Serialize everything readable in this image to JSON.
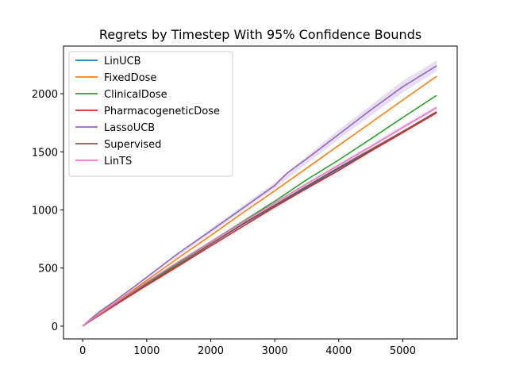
{
  "chart_data": {
    "type": "line",
    "title": "Regrets by Timestep With 95% Confidence Bounds",
    "xlabel": "",
    "ylabel": "",
    "xlim": [
      -300,
      5850
    ],
    "ylim": [
      -110,
      2410
    ],
    "x_ticks": [
      0,
      1000,
      2000,
      3000,
      4000,
      5000
    ],
    "y_ticks": [
      0,
      500,
      1000,
      1500,
      2000
    ],
    "grid": false,
    "legend": "top-left",
    "series": [
      {
        "name": "LinUCB",
        "color": "#1f77b4",
        "x": [
          0,
          100,
          250,
          500,
          1000,
          1500,
          2000,
          2500,
          3000,
          3500,
          4000,
          4500,
          5000,
          5528
        ],
        "y": [
          0,
          42,
          95,
          185,
          360,
          530,
          705,
          875,
          1035,
          1195,
          1355,
          1510,
          1665,
          1840
        ]
      },
      {
        "name": "FixedDose",
        "color": "#ff7f0e",
        "x": [
          0,
          100,
          250,
          500,
          1000,
          1500,
          2000,
          2500,
          3000,
          3500,
          4000,
          4500,
          5000,
          5528
        ],
        "y": [
          0,
          45,
          105,
          200,
          395,
          590,
          780,
          975,
          1165,
          1360,
          1555,
          1750,
          1945,
          2150
        ]
      },
      {
        "name": "ClinicalDose",
        "color": "#2ca02c",
        "x": [
          0,
          100,
          250,
          500,
          1000,
          1500,
          2000,
          2500,
          3000,
          3500,
          4000,
          4500,
          5000,
          5528
        ],
        "y": [
          0,
          42,
          98,
          188,
          368,
          545,
          725,
          900,
          1075,
          1260,
          1430,
          1610,
          1795,
          1985
        ]
      },
      {
        "name": "PharmacogeneticDose",
        "color": "#d62728",
        "x": [
          0,
          100,
          250,
          500,
          1000,
          1500,
          2000,
          2500,
          3000,
          3500,
          4000,
          4500,
          5000,
          5528
        ],
        "y": [
          0,
          38,
          90,
          178,
          350,
          518,
          690,
          858,
          1025,
          1185,
          1340,
          1505,
          1665,
          1835
        ]
      },
      {
        "name": "LassoUCB",
        "color": "#9467bd",
        "x": [
          0,
          100,
          250,
          500,
          1000,
          1500,
          2000,
          2500,
          3000,
          3200,
          3500,
          4000,
          4500,
          5000,
          5528
        ],
        "y": [
          0,
          50,
          120,
          215,
          420,
          630,
          820,
          1015,
          1210,
          1320,
          1440,
          1650,
          1860,
          2060,
          2240
        ]
      },
      {
        "name": "Supervised",
        "color": "#8c564b",
        "x": [
          0,
          100,
          250,
          500,
          1000,
          1500,
          2000,
          2500,
          3000,
          3500,
          4000,
          4500,
          5000,
          5528
        ],
        "y": [
          0,
          40,
          95,
          185,
          360,
          532,
          708,
          880,
          1042,
          1205,
          1365,
          1520,
          1675,
          1845
        ]
      },
      {
        "name": "LinTS",
        "color": "#e377c2",
        "x": [
          0,
          100,
          250,
          500,
          1000,
          1500,
          2000,
          2500,
          3000,
          3500,
          4000,
          4500,
          5000,
          5528
        ],
        "y": [
          0,
          44,
          100,
          195,
          380,
          555,
          725,
          895,
          1060,
          1225,
          1385,
          1545,
          1710,
          1880
        ]
      }
    ],
    "bands": [
      {
        "series": "LassoUCB",
        "color": "#9467bd",
        "x": [
          0,
          1000,
          2000,
          3000,
          4000,
          5000,
          5528
        ],
        "lower": [
          0,
          410,
          800,
          1185,
          1610,
          2010,
          2195
        ],
        "upper": [
          0,
          430,
          840,
          1235,
          1690,
          2110,
          2285
        ]
      },
      {
        "series": "LinTS",
        "color": "#e377c2",
        "x": [
          0,
          1000,
          2000,
          3000,
          4000,
          5000,
          5528
        ],
        "lower": [
          0,
          372,
          712,
          1045,
          1368,
          1690,
          1860
        ],
        "upper": [
          0,
          388,
          738,
          1075,
          1402,
          1730,
          1900
        ]
      }
    ]
  }
}
